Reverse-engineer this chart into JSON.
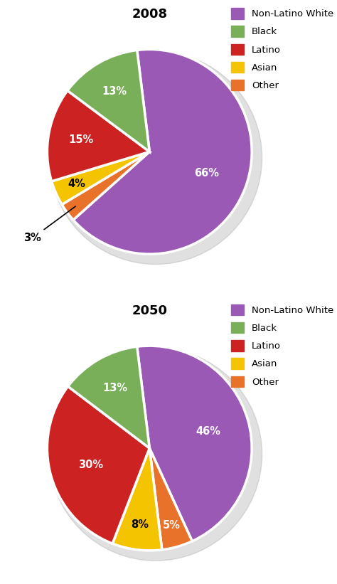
{
  "chart1": {
    "title": "2008",
    "labels": [
      "Non-Latino White",
      "Other",
      "Asian",
      "Latino",
      "Black"
    ],
    "values": [
      66,
      3,
      4,
      15,
      13
    ],
    "colors": [
      "#9B59B6",
      "#E8722A",
      "#F5C400",
      "#CC2222",
      "#7AAF5A"
    ],
    "pct_labels": [
      "66%",
      "3%",
      "4%",
      "15%",
      "13%"
    ],
    "startangle": 97
  },
  "chart2": {
    "title": "2050",
    "labels": [
      "Non-Latino White",
      "Other",
      "Asian",
      "Latino",
      "Black"
    ],
    "values": [
      46,
      5,
      8,
      30,
      13
    ],
    "colors": [
      "#9B59B6",
      "#E8722A",
      "#F5C400",
      "#CC2222",
      "#7AAF5A"
    ],
    "pct_labels": [
      "46%",
      "5%",
      "8%",
      "30%",
      "13%"
    ],
    "startangle": 97
  },
  "legend_labels": [
    "Non-Latino White",
    "Black",
    "Latino",
    "Asian",
    "Other"
  ],
  "legend_colors": [
    "#9B59B6",
    "#7AAF5A",
    "#CC2222",
    "#F5C400",
    "#E8722A"
  ],
  "bg_color": "#FFFFFF",
  "title_fontsize": 13,
  "label_fontsize": 10.5,
  "legend_fontsize": 9.5
}
